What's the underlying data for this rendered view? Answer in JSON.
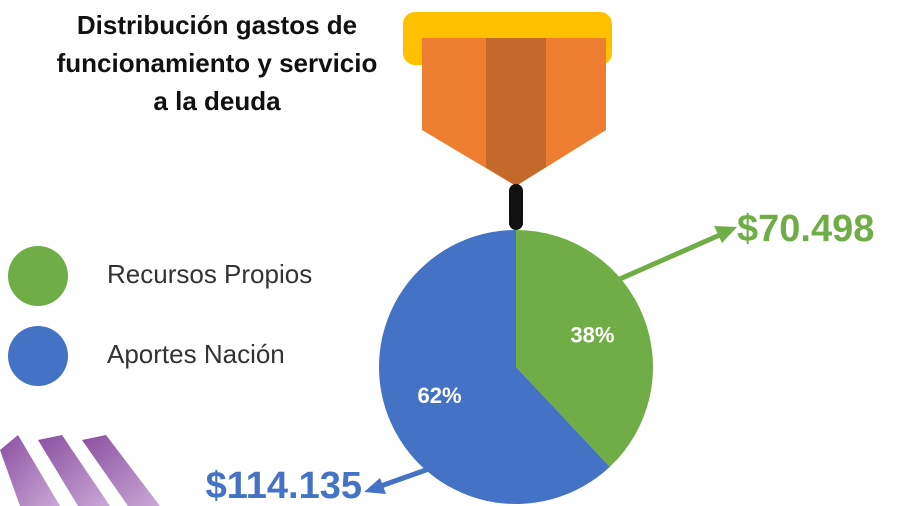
{
  "chart_data": {
    "type": "pie",
    "title": "Distribución gastos de funcionamiento y servicio a la deuda",
    "categories": [
      "Recursos Propios",
      "Aportes Nación"
    ],
    "values": [
      38,
      62
    ],
    "value_labels": [
      "38%",
      "62%"
    ],
    "colors": [
      "#70ad47",
      "#4472c4"
    ],
    "annotations": [
      "$70.498",
      "$114.135"
    ]
  }
}
